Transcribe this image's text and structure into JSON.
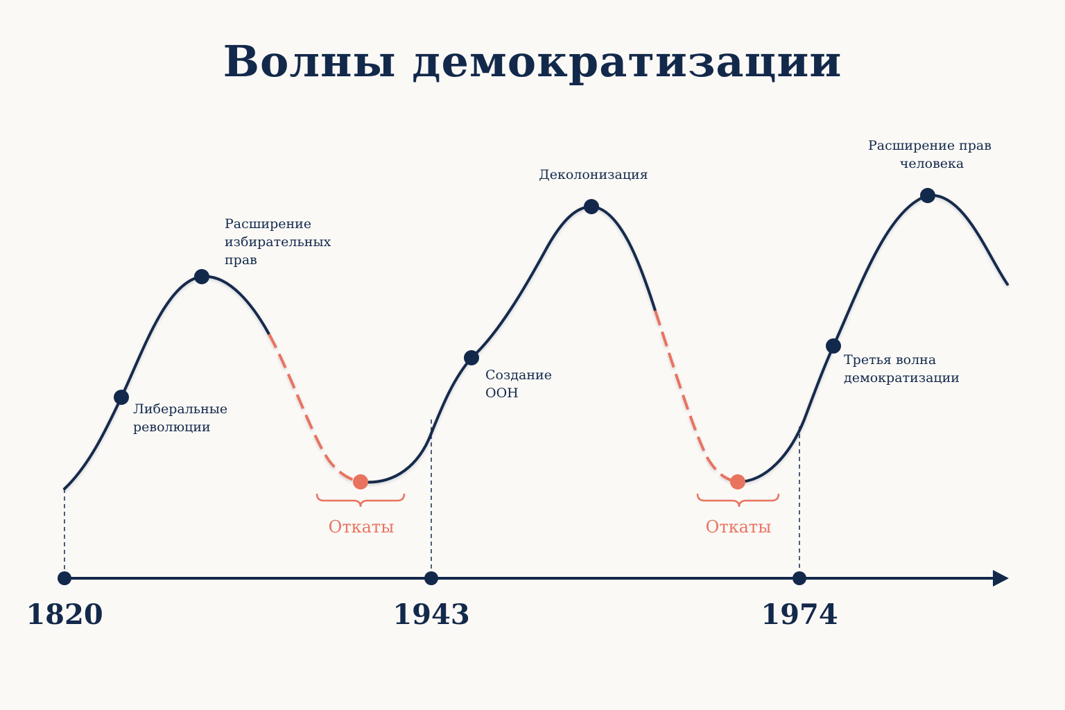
{
  "title": "Волны демократизации",
  "colors": {
    "wave": "#13294b",
    "reversal": "#e8735f",
    "background": "#fbf9f6"
  },
  "timeline": {
    "years": [
      "1820",
      "1943",
      "1974"
    ]
  },
  "events": {
    "liberal": [
      "Либеральные",
      "революции"
    ],
    "suffrage": [
      "Расширение",
      "избирательных",
      "прав"
    ],
    "un": [
      "Создание",
      "ООН"
    ],
    "decolonization": [
      "Деколонизация"
    ],
    "third_wave": [
      "Третья волна",
      "демократизации"
    ],
    "human_rights": [
      "Расширение прав",
      "человека"
    ]
  },
  "reversals": {
    "first": "Откаты",
    "second": "Откаты"
  }
}
